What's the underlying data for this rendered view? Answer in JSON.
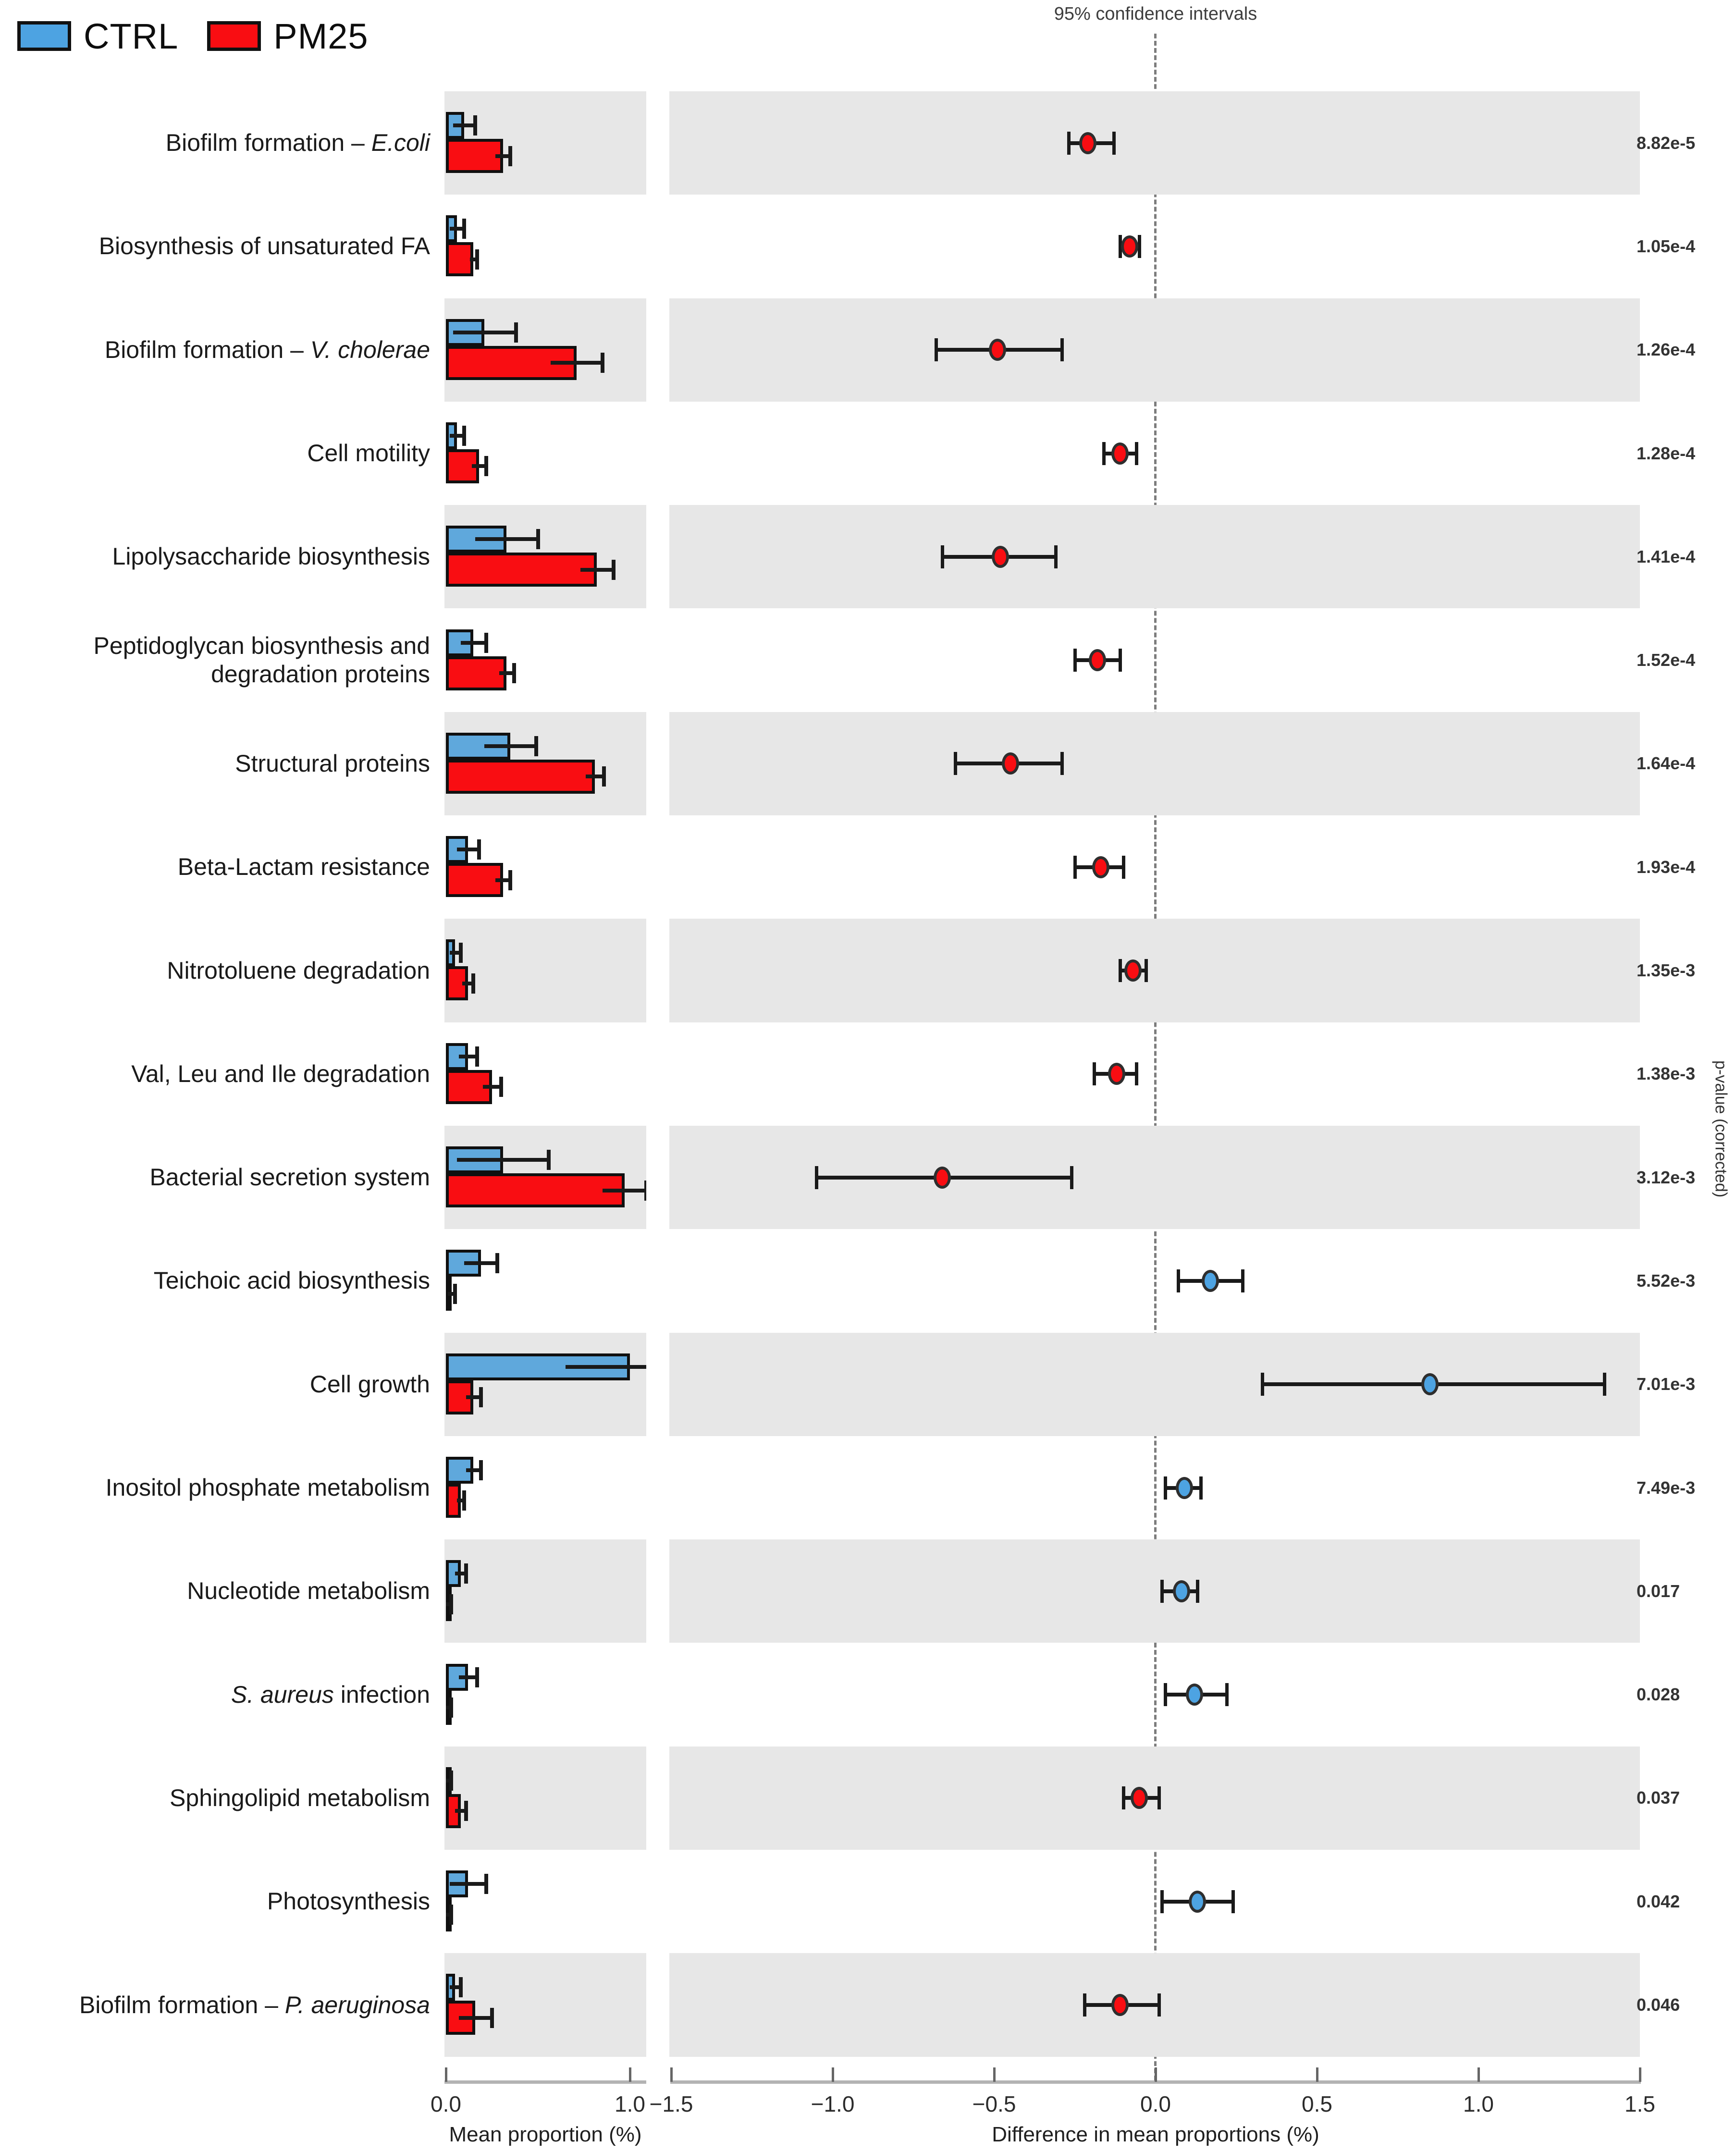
{
  "title": "95% confidence intervals",
  "legend": [
    {
      "label": "CTRL",
      "color": "#4DA3E2"
    },
    {
      "label": "PM25",
      "color": "#F90D12"
    }
  ],
  "right_axis_label": "p-value (corrected)",
  "colors": {
    "ctrl": "#5FA8DC",
    "pm25": "#F90D12",
    "band": "#e7e7e7",
    "whisker": "#1a1a1a",
    "dashed_line": "#7d7d7d"
  },
  "chart_data": {
    "type": "bar+scatter-ci",
    "title": "95% confidence intervals",
    "left_axis": {
      "label": "Mean proportion (%)",
      "ticks": [
        "0.0",
        "1.0"
      ],
      "tick_values": [
        0.0,
        1.0
      ],
      "range": [
        0,
        1.05
      ]
    },
    "right_axis": {
      "label": "Difference in mean proportions (%)",
      "ticks": [
        "-1.5",
        "-1.0",
        "-0.5",
        "0.0",
        "0.5",
        "1.0",
        "1.5"
      ],
      "tick_values": [
        -1.5,
        -1.0,
        -0.5,
        0.0,
        0.5,
        1.0,
        1.5
      ],
      "range": [
        -1.5,
        1.5
      ]
    },
    "series_note": "ctrl/pm25 are mean proportions (%); diff is difference in mean proportions with 95% CI; dot colored by enriched group",
    "rows": [
      {
        "label_prefix": "Biofilm formation – ",
        "label_italic": "E.coli",
        "label_suffix": "",
        "ctrl": 0.1,
        "ctrl_err": 0.06,
        "pm25": 0.31,
        "pm25_err": 0.04,
        "diff": -0.21,
        "ci": [
          -0.27,
          -0.13
        ],
        "enriched": "PM25",
        "p": "8.82e-5"
      },
      {
        "label_prefix": "Biosynthesis of unsaturated FA",
        "label_italic": "",
        "label_suffix": "",
        "ctrl": 0.06,
        "ctrl_err": 0.04,
        "pm25": 0.15,
        "pm25_err": 0.02,
        "diff": -0.08,
        "ci": [
          -0.11,
          -0.05
        ],
        "enriched": "PM25",
        "p": "1.05e-4"
      },
      {
        "label_prefix": "Biofilm formation – ",
        "label_italic": "V. cholerae",
        "label_suffix": "",
        "ctrl": 0.21,
        "ctrl_err": 0.17,
        "pm25": 0.71,
        "pm25_err": 0.14,
        "diff": -0.49,
        "ci": [
          -0.68,
          -0.29
        ],
        "enriched": "PM25",
        "p": "1.26e-4"
      },
      {
        "label_prefix": "Cell motility",
        "label_italic": "",
        "label_suffix": "",
        "ctrl": 0.06,
        "ctrl_err": 0.04,
        "pm25": 0.18,
        "pm25_err": 0.04,
        "diff": -0.11,
        "ci": [
          -0.16,
          -0.06
        ],
        "enriched": "PM25",
        "p": "1.28e-4"
      },
      {
        "label_prefix": "Lipolysaccharide biosynthesis",
        "label_italic": "",
        "label_suffix": "",
        "ctrl": 0.33,
        "ctrl_err": 0.17,
        "pm25": 0.82,
        "pm25_err": 0.09,
        "diff": -0.48,
        "ci": [
          -0.66,
          -0.31
        ],
        "enriched": "PM25",
        "p": "1.41e-4"
      },
      {
        "label_prefix": "Peptidoglycan biosynthesis and degradation proteins",
        "label_italic": "",
        "label_suffix": "",
        "ctrl": 0.15,
        "ctrl_err": 0.07,
        "pm25": 0.33,
        "pm25_err": 0.04,
        "diff": -0.18,
        "ci": [
          -0.25,
          -0.11
        ],
        "enriched": "PM25",
        "p": "1.52e-4"
      },
      {
        "label_prefix": "Structural proteins",
        "label_italic": "",
        "label_suffix": "",
        "ctrl": 0.35,
        "ctrl_err": 0.14,
        "pm25": 0.81,
        "pm25_err": 0.05,
        "diff": -0.45,
        "ci": [
          -0.62,
          -0.29
        ],
        "enriched": "PM25",
        "p": "1.64e-4"
      },
      {
        "label_prefix": "Beta-Lactam resistance",
        "label_italic": "",
        "label_suffix": "",
        "ctrl": 0.12,
        "ctrl_err": 0.06,
        "pm25": 0.31,
        "pm25_err": 0.04,
        "diff": -0.17,
        "ci": [
          -0.25,
          -0.1
        ],
        "enriched": "PM25",
        "p": "1.93e-4"
      },
      {
        "label_prefix": "Nitrotoluene degradation",
        "label_italic": "",
        "label_suffix": "",
        "ctrl": 0.05,
        "ctrl_err": 0.03,
        "pm25": 0.12,
        "pm25_err": 0.03,
        "diff": -0.07,
        "ci": [
          -0.11,
          -0.03
        ],
        "enriched": "PM25",
        "p": "1.35e-3"
      },
      {
        "label_prefix": "Val, Leu and Ile degradation",
        "label_italic": "",
        "label_suffix": "",
        "ctrl": 0.12,
        "ctrl_err": 0.05,
        "pm25": 0.25,
        "pm25_err": 0.05,
        "diff": -0.12,
        "ci": [
          -0.19,
          -0.06
        ],
        "enriched": "PM25",
        "p": "1.38e-3"
      },
      {
        "label_prefix": "Bacterial secretion system",
        "label_italic": "",
        "label_suffix": "",
        "ctrl": 0.31,
        "ctrl_err": 0.25,
        "pm25": 0.97,
        "pm25_err": 0.12,
        "diff": -0.66,
        "ci": [
          -1.05,
          -0.26
        ],
        "enriched": "PM25",
        "p": "3.12e-3"
      },
      {
        "label_prefix": "Teichoic acid biosynthesis",
        "label_italic": "",
        "label_suffix": "",
        "ctrl": 0.19,
        "ctrl_err": 0.09,
        "pm25": 0.03,
        "pm25_err": 0.02,
        "diff": 0.17,
        "ci": [
          0.07,
          0.27
        ],
        "enriched": "CTRL",
        "p": "5.52e-3"
      },
      {
        "label_prefix": "Cell growth",
        "label_italic": "",
        "label_suffix": "",
        "ctrl": 1.0,
        "ctrl_err": 0.35,
        "pm25": 0.15,
        "pm25_err": 0.04,
        "diff": 0.85,
        "ci": [
          0.33,
          1.39
        ],
        "enriched": "CTRL",
        "p": "7.01e-3"
      },
      {
        "label_prefix": "Inositol phosphate metabolism",
        "label_italic": "",
        "label_suffix": "",
        "ctrl": 0.15,
        "ctrl_err": 0.04,
        "pm25": 0.08,
        "pm25_err": 0.02,
        "diff": 0.09,
        "ci": [
          0.03,
          0.14
        ],
        "enriched": "CTRL",
        "p": "7.49e-3"
      },
      {
        "label_prefix": "Nucleotide metabolism",
        "label_italic": "",
        "label_suffix": "",
        "ctrl": 0.08,
        "ctrl_err": 0.03,
        "pm25": 0.01,
        "pm25_err": 0.02,
        "diff": 0.08,
        "ci": [
          0.02,
          0.13
        ],
        "enriched": "CTRL",
        "p": "0.017"
      },
      {
        "label_prefix": "",
        "label_italic": "S. aureus",
        "label_suffix": " infection",
        "ctrl": 0.12,
        "ctrl_err": 0.05,
        "pm25": 0.01,
        "pm25_err": 0.02,
        "diff": 0.12,
        "ci": [
          0.03,
          0.22
        ],
        "enriched": "CTRL",
        "p": "0.028"
      },
      {
        "label_prefix": "Sphingolipid metabolism",
        "label_italic": "",
        "label_suffix": "",
        "ctrl": 0.01,
        "ctrl_err": 0.02,
        "pm25": 0.08,
        "pm25_err": 0.03,
        "diff": -0.05,
        "ci": [
          -0.1,
          0.01
        ],
        "enriched": "PM25",
        "p": "0.037"
      },
      {
        "label_prefix": "Photosynthesis",
        "label_italic": "",
        "label_suffix": "",
        "ctrl": 0.12,
        "ctrl_err": 0.1,
        "pm25": 0.01,
        "pm25_err": 0.02,
        "diff": 0.13,
        "ci": [
          0.02,
          0.24
        ],
        "enriched": "CTRL",
        "p": "0.042"
      },
      {
        "label_prefix": "Biofilm formation – ",
        "label_italic": "P. aeruginosa",
        "label_suffix": "",
        "ctrl": 0.05,
        "ctrl_err": 0.03,
        "pm25": 0.16,
        "pm25_err": 0.09,
        "diff": -0.11,
        "ci": [
          -0.22,
          0.01
        ],
        "enriched": "PM25",
        "p": "0.046"
      }
    ]
  }
}
